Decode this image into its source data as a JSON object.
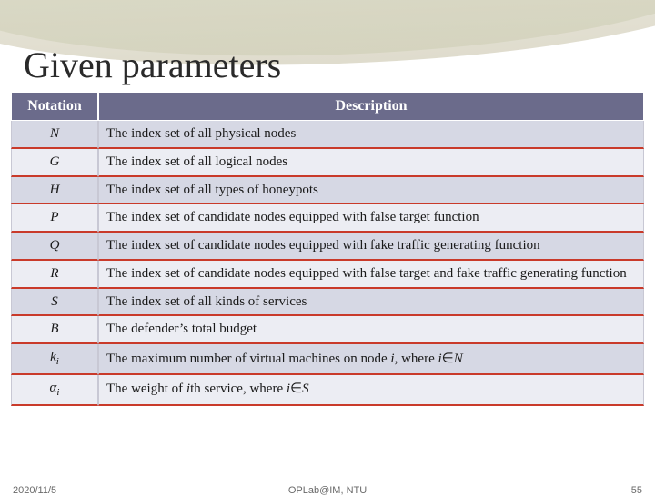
{
  "title": "Given parameters",
  "headers": {
    "col1": "Notation",
    "col2": "Description"
  },
  "rows": [
    {
      "n": "N",
      "d": "The index set of all physical nodes",
      "band": "a"
    },
    {
      "n": "G",
      "d": "The index set of all logical nodes",
      "band": "b"
    },
    {
      "n": "H",
      "d": "The index set of all types of honeypots",
      "band": "a"
    },
    {
      "n": "P",
      "d": "The index set of candidate nodes equipped with false target function",
      "band": "b"
    },
    {
      "n": "Q",
      "d": "The index set of candidate nodes equipped with fake traffic generating function",
      "band": "a"
    },
    {
      "n": "R",
      "d": "The index set of candidate nodes equipped with false target and fake traffic generating function",
      "band": "b"
    },
    {
      "n": "S",
      "d": "The index set of all kinds of services",
      "band": "a"
    },
    {
      "n": "B",
      "d": "The defender’s total budget",
      "band": "b"
    },
    {
      "n": "k_i",
      "d": "The maximum number of virtual machines on node <i>i</i>, where <i>i</i>∈<i>N</i>",
      "band": "a"
    },
    {
      "n": "α_i",
      "d": "The weight of <i>i</i>th service, where <i>i</i>∈<i>S</i>",
      "band": "b"
    }
  ],
  "footer": {
    "date": "2020/11/5",
    "org": "OPLab@IM, NTU",
    "page": "55"
  },
  "colors": {
    "header_bg": "#6b6b8b",
    "band_a": "#d6d8e4",
    "band_b": "#ecedf3",
    "row_divider": "#c93a2a",
    "title_color": "#2a2a2a"
  }
}
